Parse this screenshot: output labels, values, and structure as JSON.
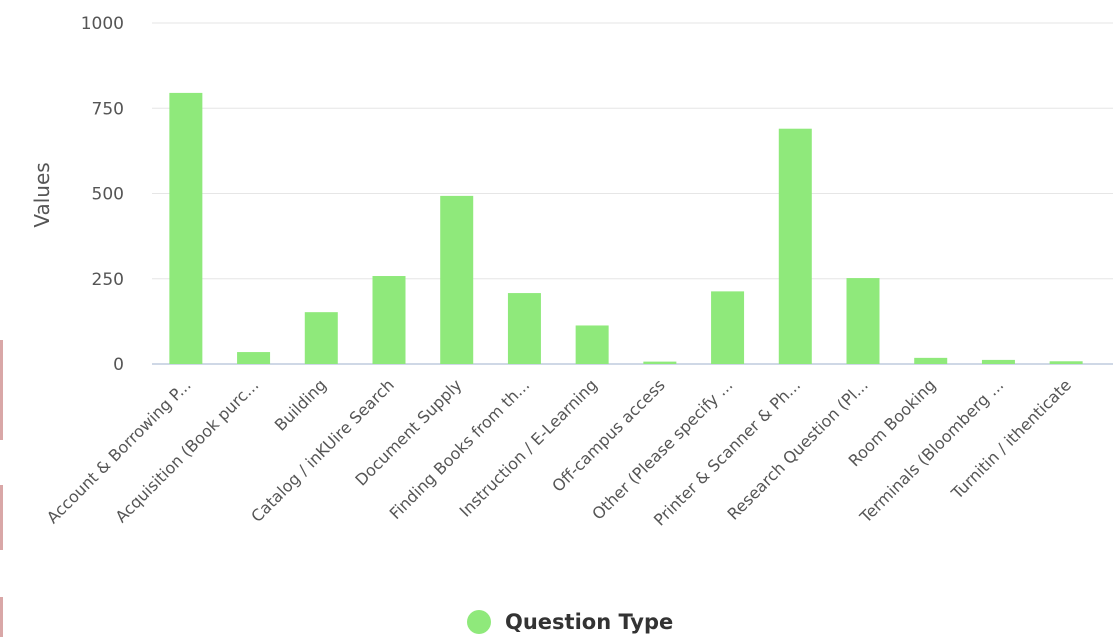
{
  "chart_data": {
    "type": "bar",
    "ylabel": "Values",
    "ylim": [
      0,
      1000
    ],
    "yticks": [
      0,
      250,
      500,
      750,
      1000
    ],
    "grid": true,
    "legend_position": "bottom-center",
    "bar_color": "#8fe97b",
    "categories": [
      "Account & Borrowing P...",
      "Acquisition (Book purc...",
      "Building",
      "Catalog / inKUire Search",
      "Document Supply",
      "Finding Books from th...",
      "Instruction / E-Learning",
      "Off-campus access",
      "Other (Please specify ...",
      "Printer & Scanner & Ph...",
      "Research Question (Pl...",
      "Room Booking",
      "Terminals (Bloomberg ...",
      "Turnitin / ithenticate"
    ],
    "series": [
      {
        "name": "Question Type",
        "values": [
          795,
          35,
          152,
          258,
          493,
          208,
          113,
          7,
          213,
          690,
          252,
          18,
          12,
          8
        ]
      }
    ]
  }
}
